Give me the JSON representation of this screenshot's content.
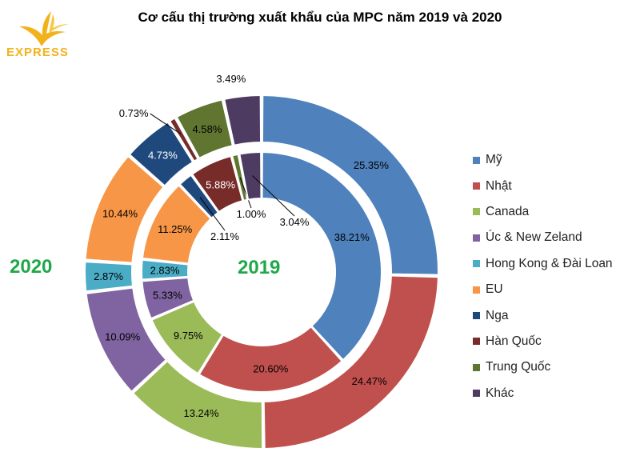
{
  "title": "Cơ cấu thị trường xuất khẩu của MPC năm 2019 và 2020",
  "logo": {
    "text": "EXPRESS",
    "color": "#f2b21c"
  },
  "outer_ring_label": "2020",
  "inner_ring_label": "2019",
  "chart_data": {
    "type": "pie",
    "subtype": "doughnut",
    "title": "Cơ cấu thị trường xuất khẩu của MPC năm 2019 và 2020",
    "categories": [
      "Mỹ",
      "Nhật",
      "Canada",
      "Úc & New Zeland",
      "Hong Kong & Đài Loan",
      "EU",
      "Nga",
      "Hàn Quốc",
      "Trung Quốc",
      "Khác"
    ],
    "colors": [
      "#4f81bd",
      "#c0504d",
      "#9bbb59",
      "#8064a2",
      "#4bacc6",
      "#f79646",
      "#1f497d",
      "#772c2a",
      "#5f7530",
      "#4d3b62"
    ],
    "series": [
      {
        "name": "2020",
        "ring": "outer",
        "values": [
          25.35,
          24.47,
          13.24,
          10.09,
          2.87,
          10.44,
          4.73,
          0.73,
          4.58,
          3.49
        ],
        "labels": [
          "25.35%",
          "24.47%",
          "13.24%",
          "10.09%",
          "2.87%",
          "10.44%",
          "4.73%",
          "0.73%",
          "4.58%",
          "3.49%"
        ]
      },
      {
        "name": "2019",
        "ring": "inner",
        "values": [
          38.21,
          20.6,
          9.75,
          5.33,
          2.83,
          11.25,
          2.11,
          5.88,
          1.0,
          3.04
        ],
        "labels": [
          "38.21%",
          "20.60%",
          "9.75%",
          "5.33%",
          "2.83%",
          "11.25%",
          "2.11%",
          "5.88%",
          "1.00%",
          "3.04%"
        ]
      }
    ],
    "legend_position": "right",
    "unit": "%"
  }
}
